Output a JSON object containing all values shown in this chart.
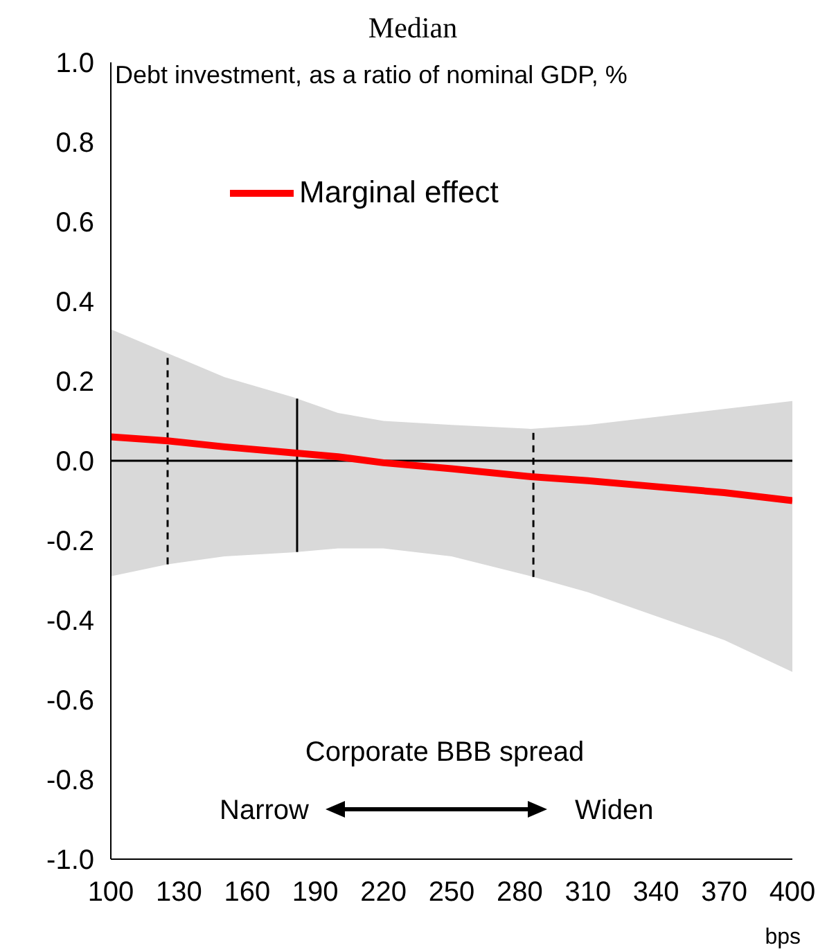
{
  "chart_data": {
    "type": "line",
    "title": "Median",
    "subtitle": "Debt investment, as a ratio of nominal GDP, %",
    "xlabel": "bps",
    "x": [
      100,
      125,
      150,
      180,
      200,
      220,
      250,
      285,
      310,
      340,
      370,
      400
    ],
    "series": [
      {
        "name": "Marginal effect",
        "color": "#ff0000",
        "values": [
          0.06,
          0.05,
          0.035,
          0.02,
          0.01,
          -0.005,
          -0.02,
          -0.04,
          -0.05,
          -0.065,
          -0.08,
          -0.1
        ],
        "lower": [
          -0.29,
          -0.26,
          -0.24,
          -0.23,
          -0.22,
          -0.22,
          -0.24,
          -0.29,
          -0.33,
          -0.39,
          -0.45,
          -0.53
        ],
        "upper": [
          0.33,
          0.27,
          0.21,
          0.16,
          0.12,
          0.1,
          0.09,
          0.08,
          0.09,
          0.11,
          0.13,
          0.15
        ]
      }
    ],
    "xlim": [
      100,
      400
    ],
    "xticks": [
      100,
      130,
      160,
      190,
      220,
      250,
      280,
      310,
      340,
      370,
      400
    ],
    "ylim": [
      -1,
      1
    ],
    "yticks": [
      {
        "value": -1,
        "label": "-1.0"
      },
      {
        "value": -0.8,
        "label": "-0.8"
      },
      {
        "value": -0.6,
        "label": "-0.6"
      },
      {
        "value": -0.4,
        "label": "-0.4"
      },
      {
        "value": -0.2,
        "label": "-0.2"
      },
      {
        "value": 0,
        "label": "0.0"
      },
      {
        "value": 0.2,
        "label": "0.2"
      },
      {
        "value": 0.4,
        "label": "0.4"
      },
      {
        "value": 0.6,
        "label": "0.6"
      },
      {
        "value": 0.8,
        "label": "0.8"
      },
      {
        "value": 1,
        "label": "1.0"
      }
    ],
    "ref_lines": [
      {
        "axis": "y",
        "value": 0,
        "color": "#000000",
        "line_style": "solid"
      },
      {
        "axis": "x",
        "value": 125,
        "color": "#000000",
        "line_style": "dashed"
      },
      {
        "axis": "x",
        "value": 182,
        "color": "#000000",
        "line_style": "solid"
      },
      {
        "axis": "x",
        "value": 286,
        "color": "#000000",
        "line_style": "dashed"
      }
    ],
    "annotations": [
      "Corporate BBB spread",
      "Narrow",
      "Widen"
    ],
    "grid": false,
    "legend": "top left",
    "marker": "none",
    "line_style": "solid"
  }
}
